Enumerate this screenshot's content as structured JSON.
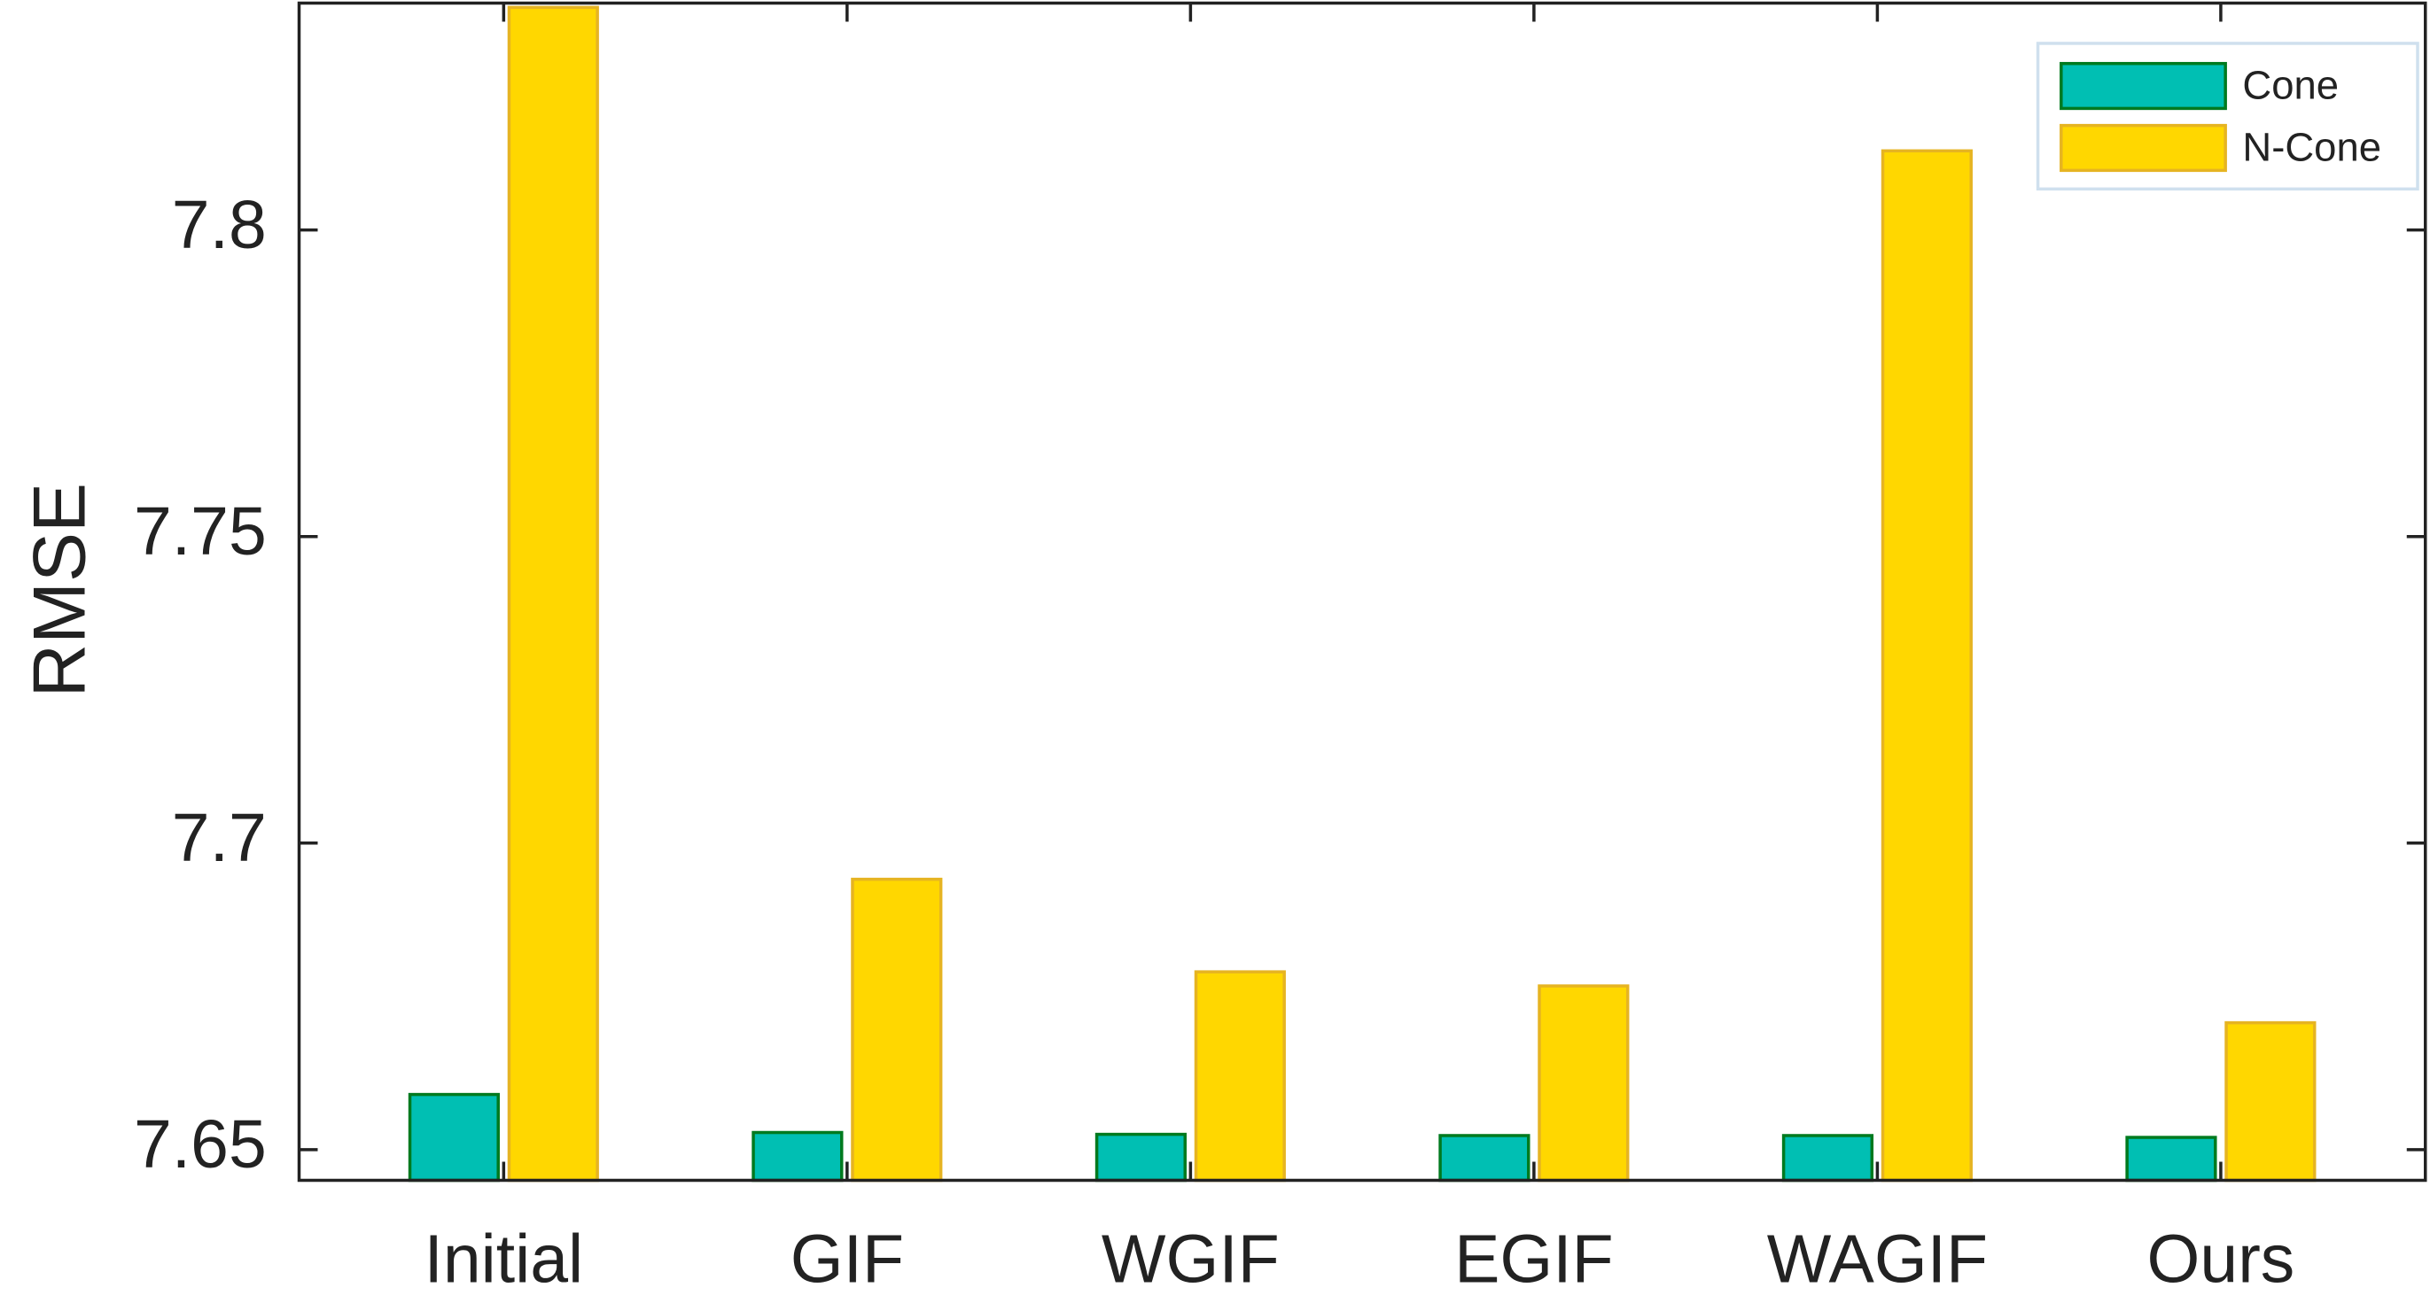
{
  "chart_data": {
    "type": "bar",
    "y_label": "RMSE",
    "categories": [
      "Initial",
      "GIF",
      "WGIF",
      "EGIF",
      "WAGIF",
      "Ours"
    ],
    "series": [
      {
        "name": "Cone",
        "color": "#00bfb3",
        "edge_color": "#007a1f",
        "values": [
          7.659,
          7.6528,
          7.6525,
          7.6523,
          7.6523,
          7.652
        ]
      },
      {
        "name": "N-Cone",
        "color": "#ffd700",
        "edge_color": "#e6b422",
        "values": [
          7.8363,
          7.6941,
          7.679,
          7.6767,
          7.8129,
          7.6707
        ]
      }
    ],
    "ylim": [
      7.645,
      7.837
    ],
    "yticks": [
      7.65,
      7.7,
      7.75,
      7.8
    ],
    "legend": "upper right"
  }
}
